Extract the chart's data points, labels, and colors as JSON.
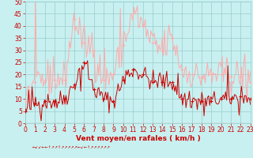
{
  "xlabel": "Vent moyen/en rafales ( km/h )",
  "background_color": "#c8f0f0",
  "grid_color": "#99cccc",
  "ylim": [
    0,
    50
  ],
  "xlim": [
    0,
    23
  ],
  "yticks": [
    0,
    5,
    10,
    15,
    20,
    25,
    30,
    35,
    40,
    45,
    50
  ],
  "xticks": [
    0,
    1,
    2,
    3,
    4,
    5,
    6,
    7,
    8,
    9,
    10,
    11,
    12,
    13,
    14,
    15,
    16,
    17,
    18,
    19,
    20,
    21,
    22,
    23
  ],
  "avg_color": "#cc0000",
  "gust_color": "#ffaaaa",
  "xlabel_color": "#cc0000",
  "tick_color": "#cc0000",
  "spine_color": "#99cccc",
  "wind_avg_hours": [
    0,
    1,
    2,
    3,
    4,
    5,
    6,
    7,
    8,
    9,
    10,
    11,
    12,
    13,
    14,
    15,
    16,
    17,
    18,
    19,
    20,
    21,
    22,
    23
  ],
  "wind_avg_vals": [
    5,
    8,
    9,
    9,
    10,
    16,
    25,
    14,
    10,
    9,
    18,
    22,
    20,
    17,
    17,
    17,
    10,
    9,
    9,
    9,
    10,
    10,
    11,
    10
  ],
  "wind_gust_vals": [
    9,
    17,
    18,
    18,
    18,
    43,
    33,
    30,
    18,
    20,
    32,
    45,
    40,
    33,
    30,
    35,
    22,
    20,
    19,
    20,
    20,
    19,
    19,
    17
  ],
  "noise_seed": 42,
  "avg_noise_std": 2.0,
  "gust_noise_std": 3.5,
  "resolution": 200,
  "figsize": [
    3.2,
    2.0
  ],
  "dpi": 100,
  "linewidth_avg": 0.7,
  "linewidth_gust": 0.7,
  "marker_size": 3.0,
  "tick_fontsize": 5.5,
  "xlabel_fontsize": 6.5
}
